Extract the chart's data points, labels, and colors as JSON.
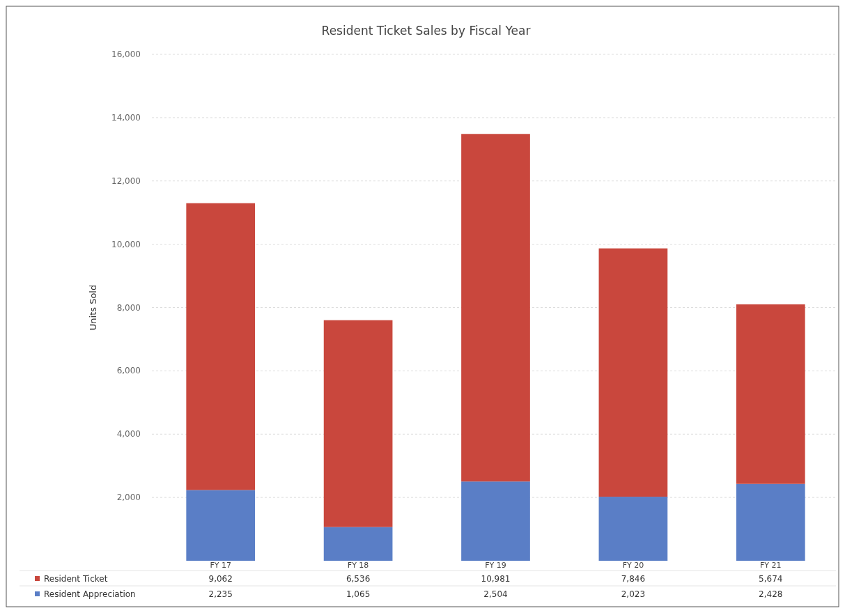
{
  "chart_data": {
    "type": "bar",
    "title": "Resident Ticket Sales by Fiscal Year",
    "ylabel": "Units Sold",
    "categories": [
      "FY 17",
      "FY 18",
      "FY 19",
      "FY 20",
      "FY 21"
    ],
    "stacked": true,
    "series": [
      {
        "name": "Resident Appreciation",
        "color": "#5a7ec6",
        "values": [
          2235,
          1065,
          2504,
          2023,
          2428
        ],
        "value_labels": [
          "2,235",
          "1,065",
          "2,504",
          "2,023",
          "2,428"
        ]
      },
      {
        "name": "Resident Ticket",
        "color": "#c9473d",
        "values": [
          9062,
          6536,
          10981,
          7846,
          5674
        ],
        "value_labels": [
          "9,062",
          "6,536",
          "10,981",
          "7,846",
          "5,674"
        ]
      }
    ],
    "ylim": [
      0,
      16000
    ],
    "yticks": [
      {
        "value": 2000,
        "label": "2,000"
      },
      {
        "value": 4000,
        "label": "4,000"
      },
      {
        "value": 6000,
        "label": "6,000"
      },
      {
        "value": 8000,
        "label": "8,000"
      },
      {
        "value": 10000,
        "label": "10,000"
      },
      {
        "value": 12000,
        "label": "12,000"
      },
      {
        "value": 14000,
        "label": "14,000"
      },
      {
        "value": 16000,
        "label": "16,000"
      }
    ],
    "grid": "y",
    "legend": "bottom"
  }
}
